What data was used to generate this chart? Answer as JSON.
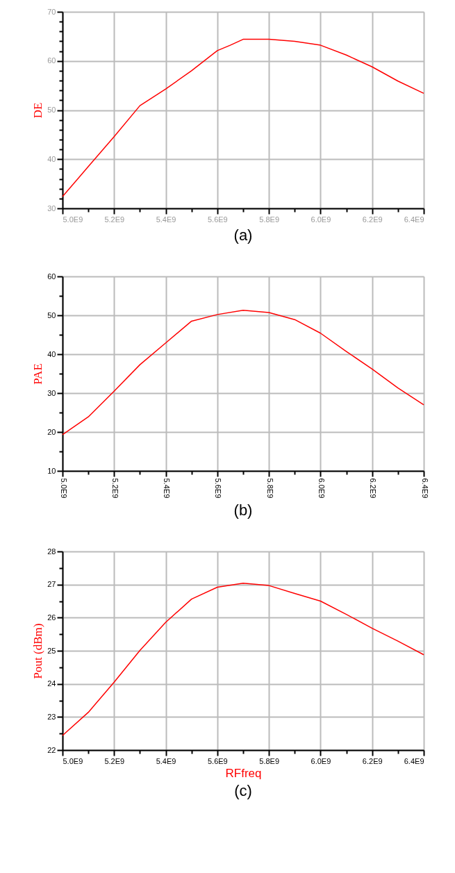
{
  "chart_data": [
    {
      "type": "line",
      "title": "(a)",
      "ylabel": "DE",
      "x": [
        5000000000.0,
        5100000000.0,
        5200000000.0,
        5300000000.0,
        5400000000.0,
        5500000000.0,
        5600000000.0,
        5650000000.0,
        5700000000.0,
        5800000000.0,
        5850000000.0,
        5900000000.0,
        6000000000.0,
        6100000000.0,
        6200000000.0,
        6300000000.0,
        6400000000.0
      ],
      "series": [
        {
          "color": "#ff0000",
          "values": [
            32.4,
            38.5,
            44.6,
            50.9,
            54.3,
            58.0,
            62.1,
            63.2,
            64.4,
            64.4,
            64.2,
            64.0,
            63.2,
            61.2,
            58.8,
            55.9,
            53.4
          ]
        }
      ],
      "xlim": [
        5000000000.0,
        6400000000.0
      ],
      "ylim": [
        30,
        70
      ],
      "xticks": [
        {
          "value": 5000000000.0,
          "label": "5.0E9"
        },
        {
          "value": 5100000000.0,
          "label": null
        },
        {
          "value": 5200000000.0,
          "label": "5.2E9"
        },
        {
          "value": 5300000000.0,
          "label": null
        },
        {
          "value": 5400000000.0,
          "label": "5.4E9"
        },
        {
          "value": 5500000000.0,
          "label": null
        },
        {
          "value": 5600000000.0,
          "label": "5.6E9"
        },
        {
          "value": 5700000000.0,
          "label": null
        },
        {
          "value": 5800000000.0,
          "label": "5.8E9"
        },
        {
          "value": 5900000000.0,
          "label": null
        },
        {
          "value": 6000000000.0,
          "label": "6.0E9"
        },
        {
          "value": 6100000000.0,
          "label": null
        },
        {
          "value": 6200000000.0,
          "label": "6.2E9"
        },
        {
          "value": 6300000000.0,
          "label": null
        },
        {
          "value": 6400000000.0,
          "label": "6.4E9"
        }
      ],
      "yticks": [
        30,
        {
          "value": 32,
          "label": null
        },
        {
          "value": 34,
          "label": null
        },
        {
          "value": 36,
          "label": null
        },
        {
          "value": 38,
          "label": null
        },
        40,
        {
          "value": 42,
          "label": null
        },
        {
          "value": 44,
          "label": null
        },
        {
          "value": 46,
          "label": null
        },
        {
          "value": 48,
          "label": null
        },
        50,
        {
          "value": 52,
          "label": null
        },
        {
          "value": 54,
          "label": null
        },
        {
          "value": 56,
          "label": null
        },
        {
          "value": 58,
          "label": null
        },
        60,
        {
          "value": 62,
          "label": null
        },
        {
          "value": 64,
          "label": null
        },
        {
          "value": 66,
          "label": null
        },
        {
          "value": 68,
          "label": null
        },
        70
      ],
      "grid": true,
      "line_style": "solid"
    },
    {
      "type": "line",
      "title": "(b)",
      "ylabel": "PAE",
      "x": [
        5000000000.0,
        5100000000.0,
        5200000000.0,
        5300000000.0,
        5400000000.0,
        5500000000.0,
        5600000000.0,
        5700000000.0,
        5800000000.0,
        5900000000.0,
        6000000000.0,
        6100000000.0,
        6200000000.0,
        6300000000.0,
        6400000000.0
      ],
      "series": [
        {
          "color": "#ff0000",
          "values": [
            19.3,
            23.9,
            30.5,
            37.3,
            42.9,
            48.5,
            50.2,
            51.3,
            50.7,
            48.9,
            45.4,
            40.7,
            36.2,
            31.3,
            27.0
          ]
        }
      ],
      "xlim": [
        5000000000.0,
        6400000000.0
      ],
      "ylim": [
        10,
        60
      ],
      "xticks": [
        {
          "value": 5000000000.0,
          "label": "5.0E9"
        },
        {
          "value": 5100000000.0,
          "label": null
        },
        {
          "value": 5200000000.0,
          "label": "5.2E9"
        },
        {
          "value": 5300000000.0,
          "label": null
        },
        {
          "value": 5400000000.0,
          "label": "5.4E9"
        },
        {
          "value": 5500000000.0,
          "label": null
        },
        {
          "value": 5600000000.0,
          "label": "5.6E9"
        },
        {
          "value": 5700000000.0,
          "label": null
        },
        {
          "value": 5800000000.0,
          "label": "5.8E9"
        },
        {
          "value": 5900000000.0,
          "label": null
        },
        {
          "value": 6000000000.0,
          "label": "6.0E9"
        },
        {
          "value": 6100000000.0,
          "label": null
        },
        {
          "value": 6200000000.0,
          "label": "6.2E9"
        },
        {
          "value": 6300000000.0,
          "label": null
        },
        {
          "value": 6400000000.0,
          "label": "6.4E9"
        }
      ],
      "yticks": [
        10,
        {
          "value": 15,
          "label": null
        },
        20,
        {
          "value": 25,
          "label": null
        },
        30,
        {
          "value": 35,
          "label": null
        },
        40,
        {
          "value": 45,
          "label": null
        },
        50,
        {
          "value": 55,
          "label": null
        },
        60
      ],
      "grid": true,
      "line_style": "solid"
    },
    {
      "type": "line",
      "title": "(c)",
      "ylabel": "Pout (dBm)",
      "xlabel": "RFfreq",
      "x": [
        5000000000.0,
        5100000000.0,
        5200000000.0,
        5300000000.0,
        5400000000.0,
        5500000000.0,
        5600000000.0,
        5700000000.0,
        5800000000.0,
        5900000000.0,
        6000000000.0,
        6100000000.0,
        6200000000.0,
        6300000000.0,
        6400000000.0
      ],
      "series": [
        {
          "color": "#ff0000",
          "values": [
            22.44,
            23.14,
            24.05,
            25.01,
            25.86,
            26.56,
            26.92,
            27.04,
            26.97,
            26.73,
            26.5,
            26.1,
            25.68,
            25.29,
            24.88
          ]
        }
      ],
      "xlim": [
        5000000000.0,
        6400000000.0
      ],
      "ylim": [
        22,
        28
      ],
      "xticks": [
        {
          "value": 5000000000.0,
          "label": "5.0E9"
        },
        {
          "value": 5100000000.0,
          "label": null
        },
        {
          "value": 5200000000.0,
          "label": "5.2E9"
        },
        {
          "value": 5300000000.0,
          "label": null
        },
        {
          "value": 5400000000.0,
          "label": "5.4E9"
        },
        {
          "value": 5500000000.0,
          "label": null
        },
        {
          "value": 5600000000.0,
          "label": "5.6E9"
        },
        {
          "value": 5700000000.0,
          "label": null
        },
        {
          "value": 5800000000.0,
          "label": "5.8E9"
        },
        {
          "value": 5900000000.0,
          "label": null
        },
        {
          "value": 6000000000.0,
          "label": "6.0E9"
        },
        {
          "value": 6100000000.0,
          "label": null
        },
        {
          "value": 6200000000.0,
          "label": "6.2E9"
        },
        {
          "value": 6300000000.0,
          "label": null
        },
        {
          "value": 6400000000.0,
          "label": "6.4E9"
        }
      ],
      "yticks": [
        22,
        {
          "value": 22.5,
          "label": null
        },
        23,
        {
          "value": 23.5,
          "label": null
        },
        24,
        {
          "value": 24.5,
          "label": null
        },
        25,
        {
          "value": 25.5,
          "label": null
        },
        26,
        {
          "value": 26.5,
          "label": null
        },
        27,
        {
          "value": 27.5,
          "label": null
        },
        28
      ],
      "grid": true,
      "line_style": "solid"
    }
  ]
}
